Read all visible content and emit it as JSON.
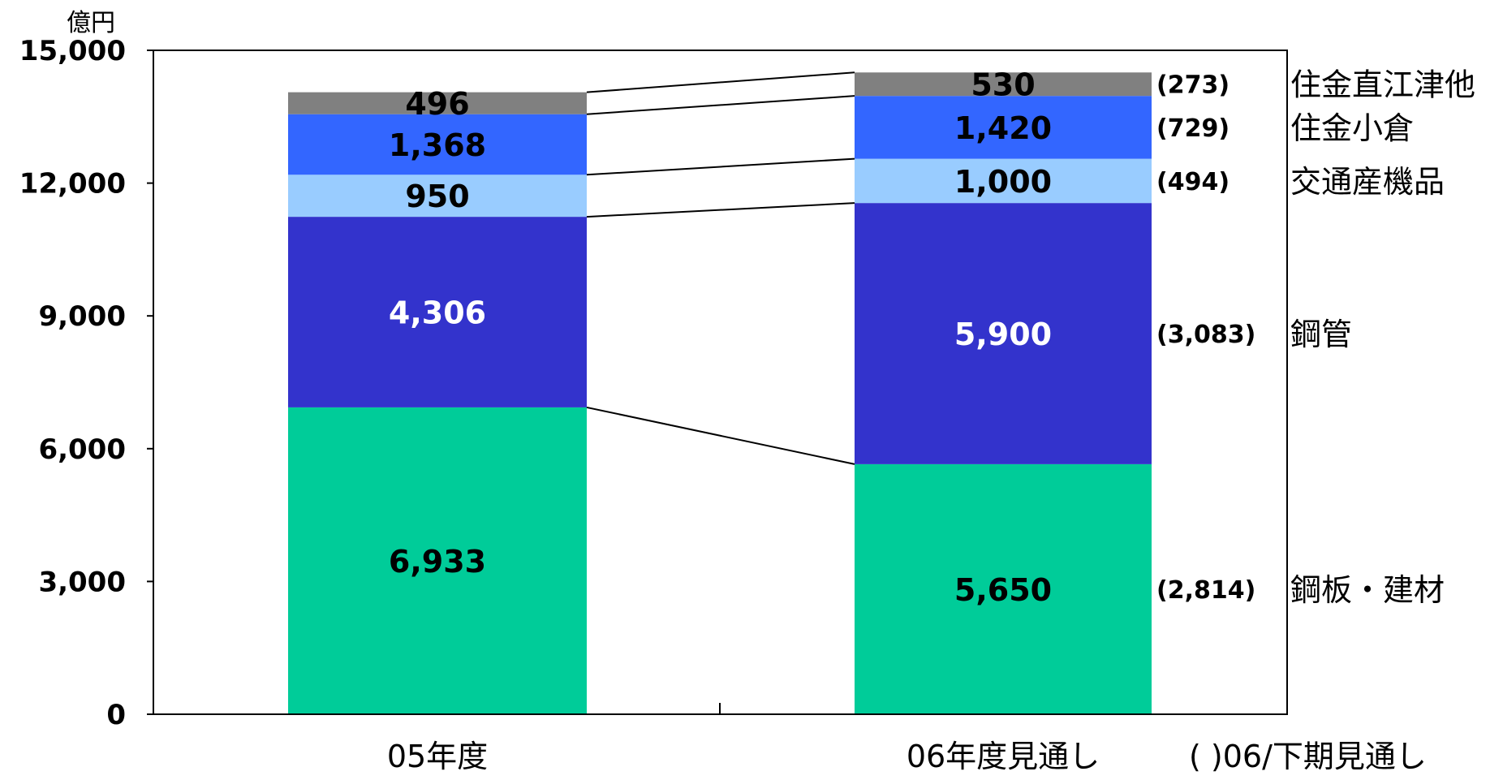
{
  "chart_data": {
    "type": "bar",
    "stacked": true,
    "unit_label": "億円",
    "ylim": [
      0,
      15000
    ],
    "y_ticks": [
      "0",
      "3,000",
      "6,000",
      "9,000",
      "12,000",
      "15,000"
    ],
    "categories": [
      "05年度",
      "06年度見通し"
    ],
    "note": "( )06/下期見通し",
    "series": [
      {
        "name": "鋼板・建材",
        "color": "#00CC99",
        "values": [
          6933,
          5650
        ],
        "labels": [
          "6,933",
          "5,650"
        ],
        "h2_label": "(2,814)",
        "label_color": "#000000"
      },
      {
        "name": "鋼管",
        "color": "#3333CC",
        "values": [
          4306,
          5900
        ],
        "labels": [
          "4,306",
          "5,900"
        ],
        "h2_label": "(3,083)",
        "label_color": "#FFFFFF"
      },
      {
        "name": "交通産機品",
        "color": "#99CCFF",
        "values": [
          950,
          1000
        ],
        "labels": [
          "950",
          "1,000"
        ],
        "h2_label": "(494)",
        "label_color": "#000000"
      },
      {
        "name": "住金小倉",
        "color": "#3366FF",
        "values": [
          1368,
          1420
        ],
        "labels": [
          "1,368",
          "1,420"
        ],
        "h2_label": "(729)",
        "label_color": "#000000"
      },
      {
        "name": "住金直江津他",
        "color": "#808080",
        "values": [
          496,
          530
        ],
        "labels": [
          "496",
          "530"
        ],
        "h2_label": "(273)",
        "label_color": "#000000"
      }
    ]
  }
}
